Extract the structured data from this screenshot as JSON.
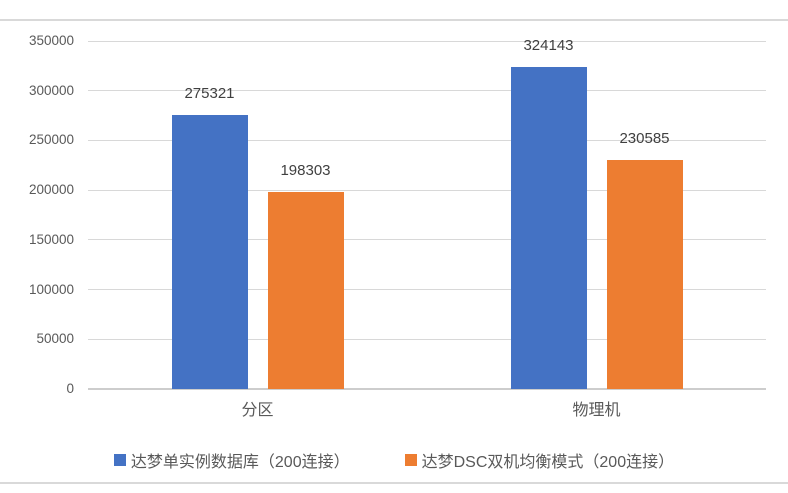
{
  "chart_data": {
    "type": "bar",
    "title": "",
    "xlabel": "",
    "ylabel": "",
    "categories": [
      "分区",
      "物理机"
    ],
    "series": [
      {
        "name": "达梦单实例数据库（200连接）",
        "color": "#4472C4",
        "values": [
          275321,
          324143
        ]
      },
      {
        "name": "达梦DSC双机均衡模式（200连接）",
        "color": "#ED7D31",
        "values": [
          198303,
          230585
        ]
      }
    ],
    "data_labels": {
      "series0": [
        "275321",
        "324143"
      ],
      "series1": [
        "198303",
        "230585"
      ]
    },
    "ylim": [
      0,
      350000
    ],
    "yticks": [
      350000,
      300000,
      250000,
      200000,
      150000,
      100000,
      50000,
      0
    ],
    "ytick_labels": [
      "350000",
      "300000",
      "250000",
      "200000",
      "150000",
      "100000",
      "50000",
      "0"
    ],
    "grid": true,
    "legend_position": "bottom",
    "value_labels_visible": true
  },
  "style": {
    "background": "#FFFFFF",
    "grid_color": "#D8D8D8",
    "axis_line_color": "#CDCDCD",
    "frame_line_color": "#D9D9D9",
    "tick_label_color": "#595959",
    "value_label_color": "#404040",
    "series_blue": "#4472C4",
    "series_orange": "#ED7D31"
  }
}
